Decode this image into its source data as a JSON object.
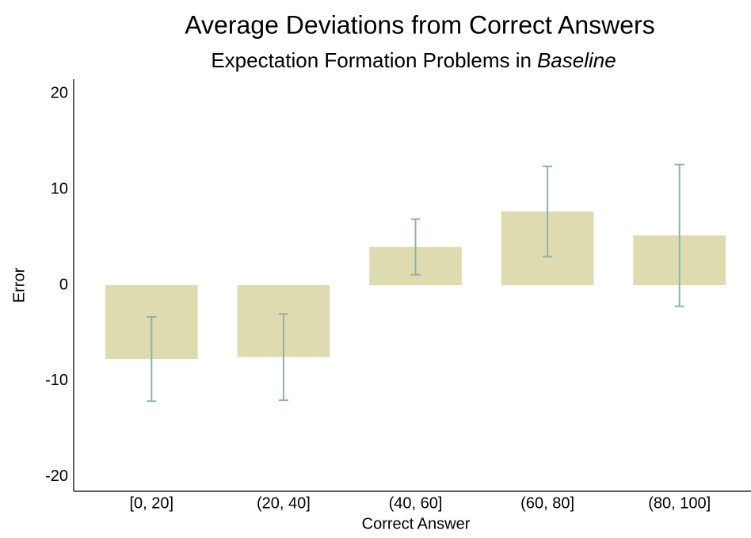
{
  "chart_data": {
    "type": "bar",
    "title": "Average Deviations from Correct Answers",
    "subtitle": [
      "Expectation Formation Problems in",
      "Baseline"
    ],
    "x_label": "Correct Answer",
    "y_label": "Error",
    "categories": [
      "[0, 20]",
      "(20, 40]",
      "(40, 60]",
      "(60, 80]",
      "(80, 100]"
    ],
    "series": [
      {
        "color": "#dedbb0",
        "error_color": "#8fb3a8",
        "values": [
          -7.7,
          -7.5,
          4.0,
          7.7,
          5.2
        ],
        "errors": [
          4.4,
          4.5,
          2.9,
          4.7,
          7.4
        ]
      }
    ],
    "ylim": [
      -21.5,
      21.5
    ],
    "yticks": [
      -20,
      -10,
      0,
      10,
      20
    ],
    "grid": false
  }
}
